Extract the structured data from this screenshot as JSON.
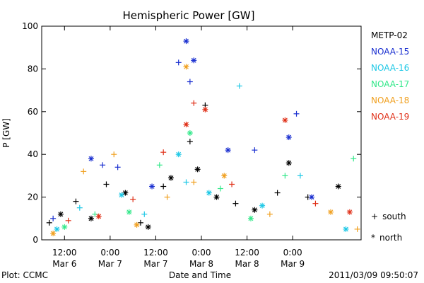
{
  "chart_data": {
    "type": "scatter",
    "title": "Hemispheric Power [GW]",
    "ylabel": "P [GW]",
    "xlabel": "Date and Time",
    "ylim": [
      0,
      100
    ],
    "yticks": [
      0,
      20,
      40,
      60,
      80,
      100
    ],
    "xlim": [
      "2011-03-06 06:00",
      "2011-03-09 18:00"
    ],
    "xticks": [
      {
        "x": "2011-03-06 12:00",
        "time": "12:00",
        "date": "Mar 6"
      },
      {
        "x": "2011-03-07 00:00",
        "time": "0:00",
        "date": "Mar 7"
      },
      {
        "x": "2011-03-07 12:00",
        "time": "12:00",
        "date": "Mar 7"
      },
      {
        "x": "2011-03-08 00:00",
        "time": "0:00",
        "date": "Mar 8"
      },
      {
        "x": "2011-03-08 12:00",
        "time": "12:00",
        "date": "Mar 8"
      },
      {
        "x": "2011-03-09 00:00",
        "time": "0:00",
        "date": "Mar 9"
      }
    ],
    "legend_position": "right",
    "marker_legend": [
      {
        "symbol": "+",
        "label": "south"
      },
      {
        "symbol": "*",
        "label": "north"
      }
    ],
    "series": [
      {
        "name": "METP-02",
        "color": "#000000",
        "points": [
          {
            "x": "2011-03-06 08:00",
            "y": 8,
            "m": "+"
          },
          {
            "x": "2011-03-06 11:00",
            "y": 12,
            "m": "*"
          },
          {
            "x": "2011-03-06 15:00",
            "y": 18,
            "m": "+"
          },
          {
            "x": "2011-03-06 19:00",
            "y": 10,
            "m": "*"
          },
          {
            "x": "2011-03-06 23:00",
            "y": 26,
            "m": "+"
          },
          {
            "x": "2011-03-07 04:00",
            "y": 22,
            "m": "*"
          },
          {
            "x": "2011-03-07 08:00",
            "y": 8,
            "m": "+"
          },
          {
            "x": "2011-03-07 10:00",
            "y": 6,
            "m": "*"
          },
          {
            "x": "2011-03-07 14:00",
            "y": 25,
            "m": "+"
          },
          {
            "x": "2011-03-07 16:00",
            "y": 29,
            "m": "*"
          },
          {
            "x": "2011-03-07 21:00",
            "y": 46,
            "m": "+"
          },
          {
            "x": "2011-03-07 23:00",
            "y": 33,
            "m": "*"
          },
          {
            "x": "2011-03-08 01:00",
            "y": 63,
            "m": "+"
          },
          {
            "x": "2011-03-08 04:00",
            "y": 20,
            "m": "*"
          },
          {
            "x": "2011-03-08 09:00",
            "y": 17,
            "m": "+"
          },
          {
            "x": "2011-03-08 14:00",
            "y": 14,
            "m": "*"
          },
          {
            "x": "2011-03-08 20:00",
            "y": 22,
            "m": "+"
          },
          {
            "x": "2011-03-08 23:00",
            "y": 36,
            "m": "*"
          },
          {
            "x": "2011-03-09 04:00",
            "y": 20,
            "m": "+"
          },
          {
            "x": "2011-03-09 12:00",
            "y": 25,
            "m": "*"
          }
        ]
      },
      {
        "name": "NOAA-15",
        "color": "#1a2fd0",
        "points": [
          {
            "x": "2011-03-06 09:00",
            "y": 10,
            "m": "+"
          },
          {
            "x": "2011-03-06 19:00",
            "y": 38,
            "m": "*"
          },
          {
            "x": "2011-03-06 22:00",
            "y": 35,
            "m": "+"
          },
          {
            "x": "2011-03-07 02:00",
            "y": 34,
            "m": "+"
          },
          {
            "x": "2011-03-07 11:00",
            "y": 25,
            "m": "*"
          },
          {
            "x": "2011-03-07 18:00",
            "y": 83,
            "m": "+"
          },
          {
            "x": "2011-03-07 20:00",
            "y": 93,
            "m": "*"
          },
          {
            "x": "2011-03-07 22:00",
            "y": 84,
            "m": "*"
          },
          {
            "x": "2011-03-07 21:00",
            "y": 74,
            "m": "+"
          },
          {
            "x": "2011-03-08 07:00",
            "y": 42,
            "m": "*"
          },
          {
            "x": "2011-03-08 14:00",
            "y": 42,
            "m": "+"
          },
          {
            "x": "2011-03-08 23:00",
            "y": 48,
            "m": "*"
          },
          {
            "x": "2011-03-09 01:00",
            "y": 59,
            "m": "+"
          },
          {
            "x": "2011-03-09 05:00",
            "y": 20,
            "m": "*"
          }
        ]
      },
      {
        "name": "NOAA-16",
        "color": "#1fc8e6",
        "points": [
          {
            "x": "2011-03-06 10:00",
            "y": 5,
            "m": "*"
          },
          {
            "x": "2011-03-06 16:00",
            "y": 15,
            "m": "+"
          },
          {
            "x": "2011-03-07 03:00",
            "y": 21,
            "m": "*"
          },
          {
            "x": "2011-03-07 09:00",
            "y": 12,
            "m": "+"
          },
          {
            "x": "2011-03-07 18:00",
            "y": 40,
            "m": "*"
          },
          {
            "x": "2011-03-07 20:00",
            "y": 27,
            "m": "+"
          },
          {
            "x": "2011-03-08 02:00",
            "y": 22,
            "m": "*"
          },
          {
            "x": "2011-03-08 10:00",
            "y": 72,
            "m": "+"
          },
          {
            "x": "2011-03-08 16:00",
            "y": 16,
            "m": "*"
          },
          {
            "x": "2011-03-09 02:00",
            "y": 30,
            "m": "+"
          },
          {
            "x": "2011-03-09 14:00",
            "y": 5,
            "m": "*"
          }
        ]
      },
      {
        "name": "NOAA-17",
        "color": "#33e88a",
        "points": [
          {
            "x": "2011-03-06 12:00",
            "y": 6,
            "m": "*"
          },
          {
            "x": "2011-03-06 20:00",
            "y": 12,
            "m": "+"
          },
          {
            "x": "2011-03-07 05:00",
            "y": 13,
            "m": "*"
          },
          {
            "x": "2011-03-07 13:00",
            "y": 35,
            "m": "+"
          },
          {
            "x": "2011-03-07 21:00",
            "y": 50,
            "m": "*"
          },
          {
            "x": "2011-03-08 05:00",
            "y": 24,
            "m": "+"
          },
          {
            "x": "2011-03-08 13:00",
            "y": 10,
            "m": "*"
          },
          {
            "x": "2011-03-08 22:00",
            "y": 30,
            "m": "+"
          },
          {
            "x": "2011-03-09 16:00",
            "y": 38,
            "m": "+"
          }
        ]
      },
      {
        "name": "NOAA-18",
        "color": "#f0a020",
        "points": [
          {
            "x": "2011-03-06 09:00",
            "y": 3,
            "m": "*"
          },
          {
            "x": "2011-03-06 17:00",
            "y": 32,
            "m": "+"
          },
          {
            "x": "2011-03-07 01:00",
            "y": 40,
            "m": "+"
          },
          {
            "x": "2011-03-07 07:00",
            "y": 7,
            "m": "*"
          },
          {
            "x": "2011-03-07 15:00",
            "y": 20,
            "m": "+"
          },
          {
            "x": "2011-03-07 20:00",
            "y": 81,
            "m": "*"
          },
          {
            "x": "2011-03-07 22:00",
            "y": 27,
            "m": "+"
          },
          {
            "x": "2011-03-08 06:00",
            "y": 30,
            "m": "*"
          },
          {
            "x": "2011-03-08 18:00",
            "y": 12,
            "m": "+"
          },
          {
            "x": "2011-03-09 10:00",
            "y": 13,
            "m": "*"
          },
          {
            "x": "2011-03-09 17:00",
            "y": 5,
            "m": "+"
          }
        ]
      },
      {
        "name": "NOAA-19",
        "color": "#e03018",
        "points": [
          {
            "x": "2011-03-06 13:00",
            "y": 9,
            "m": "+"
          },
          {
            "x": "2011-03-06 21:00",
            "y": 11,
            "m": "*"
          },
          {
            "x": "2011-03-07 06:00",
            "y": 19,
            "m": "+"
          },
          {
            "x": "2011-03-07 14:00",
            "y": 41,
            "m": "+"
          },
          {
            "x": "2011-03-07 20:00",
            "y": 54,
            "m": "*"
          },
          {
            "x": "2011-03-07 22:00",
            "y": 64,
            "m": "+"
          },
          {
            "x": "2011-03-08 01:00",
            "y": 61,
            "m": "*"
          },
          {
            "x": "2011-03-08 08:00",
            "y": 26,
            "m": "+"
          },
          {
            "x": "2011-03-08 22:00",
            "y": 56,
            "m": "*"
          },
          {
            "x": "2011-03-09 06:00",
            "y": 17,
            "m": "+"
          },
          {
            "x": "2011-03-09 15:00",
            "y": 13,
            "m": "*"
          }
        ]
      }
    ]
  },
  "footer": {
    "left": "Plot: CCMC",
    "right": "2011/03/09 09:50:07"
  }
}
